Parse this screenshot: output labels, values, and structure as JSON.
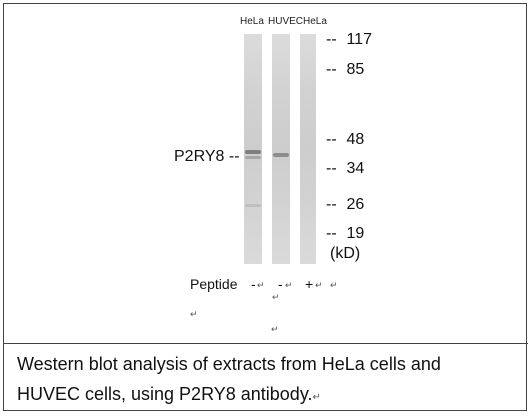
{
  "lanes": [
    {
      "label": "HeLa",
      "peptide": "-"
    },
    {
      "label": "HUVEC",
      "peptide": "-"
    },
    {
      "label": "HeLa",
      "peptide": "+"
    }
  ],
  "markers": [
    "117",
    "85",
    "48",
    "34",
    "26",
    "19"
  ],
  "unit_label": "(kD)",
  "marker_dash": "--",
  "protein": {
    "name": "P2RY8",
    "arrow": "--"
  },
  "peptide_label": "Peptide",
  "return_mark": "↵",
  "caption_line1": "Western blot analysis of extracts from HeLa cells and",
  "caption_line2": "HUVEC cells, using P2RY8 antibody.",
  "colors": {
    "lane": "#d4d4d4",
    "band": "#8a8a8a",
    "border": "#444444"
  }
}
